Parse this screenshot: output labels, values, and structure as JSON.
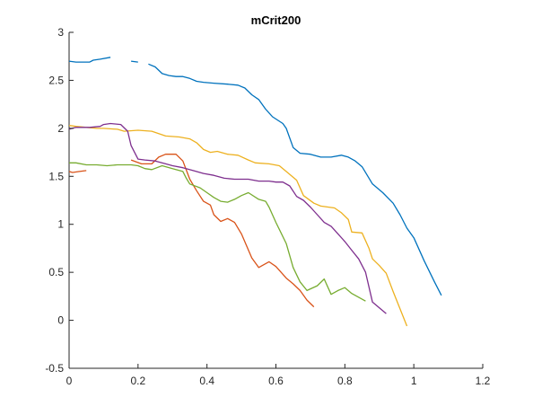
{
  "chart_data": {
    "type": "line",
    "title": "mCrit200",
    "xlabel": "",
    "ylabel": "",
    "xlim": [
      0,
      1.2
    ],
    "ylim": [
      -0.5,
      3
    ],
    "xticks": [
      0,
      0.2,
      0.4,
      0.6,
      0.8,
      1,
      1.2
    ],
    "yticks": [
      -0.5,
      0,
      0.5,
      1,
      1.5,
      2,
      2.5,
      3
    ],
    "xtick_labels": [
      "0",
      "0.2",
      "0.4",
      "0.6",
      "0.8",
      "1",
      "1.2"
    ],
    "ytick_labels": [
      "-0.5",
      "0",
      "0.5",
      "1",
      "1.5",
      "2",
      "2.5",
      "3"
    ],
    "grid": false,
    "series": [
      {
        "color": "#0072BD",
        "segments": [
          [
            [
              0.0,
              2.7
            ],
            [
              0.02,
              2.69
            ],
            [
              0.06,
              2.69
            ],
            [
              0.07,
              2.71
            ],
            [
              0.09,
              2.72
            ],
            [
              0.12,
              2.74
            ]
          ],
          [
            [
              0.18,
              2.7
            ],
            [
              0.2,
              2.69
            ]
          ],
          [
            [
              0.23,
              2.67
            ],
            [
              0.25,
              2.64
            ],
            [
              0.27,
              2.57
            ],
            [
              0.29,
              2.55
            ],
            [
              0.31,
              2.54
            ],
            [
              0.33,
              2.54
            ],
            [
              0.35,
              2.52
            ],
            [
              0.37,
              2.49
            ],
            [
              0.39,
              2.48
            ],
            [
              0.42,
              2.47
            ],
            [
              0.46,
              2.46
            ],
            [
              0.49,
              2.45
            ],
            [
              0.51,
              2.42
            ],
            [
              0.53,
              2.35
            ],
            [
              0.55,
              2.3
            ],
            [
              0.57,
              2.2
            ],
            [
              0.59,
              2.12
            ],
            [
              0.62,
              2.05
            ],
            [
              0.63,
              2.0
            ],
            [
              0.65,
              1.8
            ],
            [
              0.67,
              1.74
            ],
            [
              0.7,
              1.73
            ],
            [
              0.73,
              1.7
            ],
            [
              0.76,
              1.7
            ],
            [
              0.79,
              1.72
            ],
            [
              0.81,
              1.7
            ],
            [
              0.83,
              1.66
            ],
            [
              0.85,
              1.6
            ],
            [
              0.88,
              1.42
            ],
            [
              0.91,
              1.33
            ],
            [
              0.94,
              1.22
            ],
            [
              0.96,
              1.1
            ],
            [
              0.98,
              0.96
            ],
            [
              1.0,
              0.86
            ],
            [
              1.03,
              0.62
            ],
            [
              1.06,
              0.4
            ],
            [
              1.08,
              0.26
            ]
          ]
        ]
      },
      {
        "color": "#D95319",
        "segments": [
          [
            [
              0.0,
              1.55
            ],
            [
              0.01,
              1.54
            ],
            [
              0.03,
              1.55
            ],
            [
              0.05,
              1.56
            ]
          ],
          [
            [
              0.18,
              1.67
            ],
            [
              0.21,
              1.63
            ],
            [
              0.24,
              1.63
            ],
            [
              0.26,
              1.7
            ],
            [
              0.28,
              1.73
            ],
            [
              0.31,
              1.73
            ],
            [
              0.33,
              1.66
            ],
            [
              0.35,
              1.47
            ],
            [
              0.37,
              1.35
            ],
            [
              0.39,
              1.24
            ],
            [
              0.41,
              1.2
            ],
            [
              0.42,
              1.1
            ],
            [
              0.44,
              1.03
            ],
            [
              0.46,
              1.06
            ],
            [
              0.48,
              1.02
            ],
            [
              0.5,
              0.9
            ],
            [
              0.53,
              0.65
            ],
            [
              0.55,
              0.55
            ],
            [
              0.58,
              0.61
            ],
            [
              0.6,
              0.56
            ],
            [
              0.63,
              0.44
            ],
            [
              0.65,
              0.38
            ],
            [
              0.67,
              0.31
            ],
            [
              0.69,
              0.21
            ],
            [
              0.71,
              0.14
            ]
          ]
        ]
      },
      {
        "color": "#EDB120",
        "segments": [
          [
            [
              0.0,
              2.03
            ],
            [
              0.02,
              2.02
            ],
            [
              0.05,
              2.01
            ],
            [
              0.08,
              2.0
            ],
            [
              0.1,
              2.0
            ],
            [
              0.14,
              1.99
            ],
            [
              0.16,
              1.97
            ],
            [
              0.2,
              1.98
            ],
            [
              0.24,
              1.97
            ],
            [
              0.28,
              1.92
            ],
            [
              0.32,
              1.91
            ],
            [
              0.35,
              1.89
            ],
            [
              0.37,
              1.85
            ],
            [
              0.39,
              1.78
            ],
            [
              0.41,
              1.75
            ],
            [
              0.43,
              1.76
            ],
            [
              0.46,
              1.73
            ],
            [
              0.49,
              1.72
            ],
            [
              0.52,
              1.67
            ],
            [
              0.54,
              1.64
            ],
            [
              0.58,
              1.63
            ],
            [
              0.61,
              1.61
            ],
            [
              0.63,
              1.55
            ],
            [
              0.66,
              1.46
            ],
            [
              0.68,
              1.3
            ],
            [
              0.71,
              1.22
            ],
            [
              0.73,
              1.19
            ],
            [
              0.77,
              1.17
            ],
            [
              0.79,
              1.12
            ],
            [
              0.81,
              1.05
            ],
            [
              0.82,
              0.92
            ],
            [
              0.85,
              0.91
            ],
            [
              0.87,
              0.75
            ],
            [
              0.88,
              0.64
            ],
            [
              0.9,
              0.57
            ],
            [
              0.92,
              0.49
            ],
            [
              0.94,
              0.3
            ],
            [
              0.96,
              0.12
            ],
            [
              0.98,
              -0.06
            ]
          ]
        ]
      },
      {
        "color": "#7E2F8E",
        "segments": [
          [
            [
              0.0,
              1.99
            ],
            [
              0.02,
              2.01
            ],
            [
              0.06,
              2.01
            ],
            [
              0.09,
              2.02
            ],
            [
              0.1,
              2.04
            ],
            [
              0.12,
              2.05
            ],
            [
              0.15,
              2.04
            ],
            [
              0.17,
              1.97
            ],
            [
              0.18,
              1.82
            ],
            [
              0.2,
              1.68
            ],
            [
              0.22,
              1.67
            ],
            [
              0.25,
              1.66
            ],
            [
              0.28,
              1.63
            ],
            [
              0.3,
              1.61
            ],
            [
              0.33,
              1.59
            ],
            [
              0.36,
              1.56
            ],
            [
              0.39,
              1.53
            ],
            [
              0.42,
              1.51
            ],
            [
              0.45,
              1.48
            ],
            [
              0.48,
              1.47
            ],
            [
              0.52,
              1.47
            ],
            [
              0.55,
              1.45
            ],
            [
              0.58,
              1.45
            ],
            [
              0.6,
              1.44
            ],
            [
              0.62,
              1.44
            ],
            [
              0.64,
              1.4
            ],
            [
              0.66,
              1.29
            ],
            [
              0.68,
              1.25
            ],
            [
              0.7,
              1.18
            ],
            [
              0.72,
              1.1
            ],
            [
              0.74,
              1.02
            ],
            [
              0.76,
              0.98
            ],
            [
              0.78,
              0.9
            ],
            [
              0.8,
              0.82
            ],
            [
              0.82,
              0.73
            ],
            [
              0.84,
              0.64
            ],
            [
              0.86,
              0.5
            ],
            [
              0.88,
              0.19
            ],
            [
              0.9,
              0.13
            ],
            [
              0.92,
              0.07
            ]
          ]
        ]
      },
      {
        "color": "#77AC30",
        "segments": [
          [
            [
              0.0,
              1.64
            ],
            [
              0.02,
              1.64
            ],
            [
              0.05,
              1.62
            ],
            [
              0.08,
              1.62
            ],
            [
              0.11,
              1.61
            ],
            [
              0.14,
              1.62
            ],
            [
              0.18,
              1.62
            ],
            [
              0.2,
              1.61
            ],
            [
              0.22,
              1.58
            ],
            [
              0.24,
              1.57
            ],
            [
              0.27,
              1.61
            ],
            [
              0.3,
              1.58
            ],
            [
              0.33,
              1.55
            ],
            [
              0.34,
              1.48
            ],
            [
              0.35,
              1.42
            ],
            [
              0.38,
              1.38
            ],
            [
              0.4,
              1.33
            ],
            [
              0.42,
              1.28
            ],
            [
              0.44,
              1.24
            ],
            [
              0.46,
              1.23
            ],
            [
              0.48,
              1.26
            ],
            [
              0.5,
              1.3
            ],
            [
              0.52,
              1.33
            ],
            [
              0.55,
              1.26
            ],
            [
              0.57,
              1.24
            ],
            [
              0.58,
              1.18
            ],
            [
              0.6,
              1.02
            ],
            [
              0.63,
              0.8
            ],
            [
              0.65,
              0.55
            ],
            [
              0.67,
              0.4
            ],
            [
              0.69,
              0.31
            ],
            [
              0.72,
              0.36
            ],
            [
              0.74,
              0.43
            ],
            [
              0.76,
              0.27
            ],
            [
              0.78,
              0.31
            ],
            [
              0.8,
              0.34
            ],
            [
              0.82,
              0.28
            ],
            [
              0.84,
              0.24
            ],
            [
              0.86,
              0.2
            ]
          ]
        ]
      }
    ]
  }
}
